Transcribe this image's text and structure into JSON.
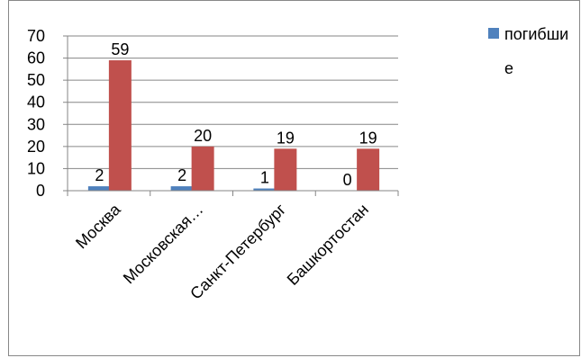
{
  "chart_data": {
    "type": "bar",
    "categories": [
      "Москва",
      "Московская…",
      "Санкт-Петербург",
      "Башкортостан"
    ],
    "series": [
      {
        "name": "погибшие",
        "values": [
          2,
          2,
          1,
          0
        ],
        "color": "#4F81BD"
      },
      {
        "values": [
          59,
          20,
          19,
          19
        ],
        "color": "#C0504D"
      }
    ],
    "ylim": [
      0,
      70
    ],
    "yticks": [
      0,
      10,
      20,
      30,
      40,
      50,
      60,
      70
    ],
    "grid": true,
    "legend_position": "right"
  }
}
